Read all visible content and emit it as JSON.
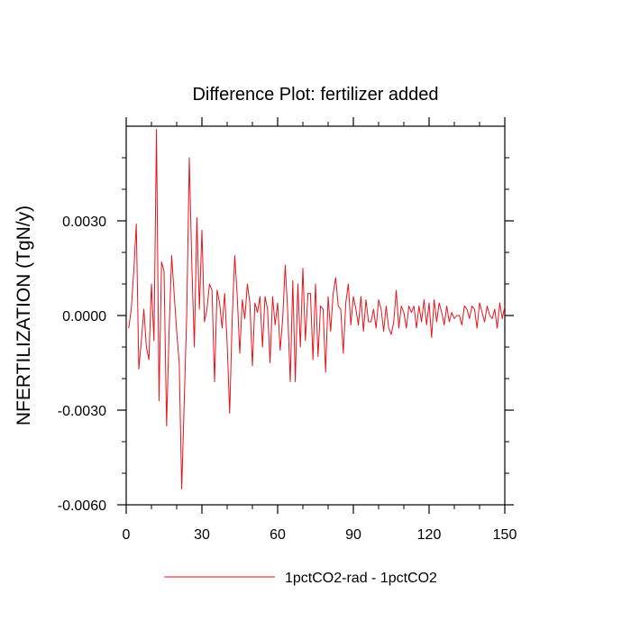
{
  "chart_data": {
    "type": "line",
    "title": "Difference Plot: fertilizer added",
    "xlabel": "",
    "ylabel": "NFERTILIZATION  (TgN/y)",
    "xlim": [
      0,
      150
    ],
    "ylim": [
      -0.006,
      0.006
    ],
    "xticks": [
      0,
      30,
      60,
      90,
      120,
      150
    ],
    "xtick_labels": [
      "0",
      "30",
      "60",
      "90",
      "120",
      "150"
    ],
    "yticks": [
      -0.006,
      -0.003,
      0.0,
      0.003
    ],
    "ytick_labels": [
      "-0.0060",
      "-0.0030",
      "0.0000",
      "0.0030"
    ],
    "grid": false,
    "legend_position": "bottom-center",
    "series": [
      {
        "name": "1pctCO2-rad - 1pctCO2",
        "color": "#e8141c",
        "x": [
          1,
          2,
          3,
          4,
          5,
          6,
          7,
          8,
          9,
          10,
          11,
          12,
          13,
          14,
          15,
          16,
          17,
          18,
          19,
          20,
          21,
          22,
          23,
          24,
          25,
          26,
          27,
          28,
          29,
          30,
          31,
          32,
          33,
          34,
          35,
          36,
          37,
          38,
          39,
          40,
          41,
          42,
          43,
          44,
          45,
          46,
          47,
          48,
          49,
          50,
          51,
          52,
          53,
          54,
          55,
          56,
          57,
          58,
          59,
          60,
          61,
          62,
          63,
          64,
          65,
          66,
          67,
          68,
          69,
          70,
          71,
          72,
          73,
          74,
          75,
          76,
          77,
          78,
          79,
          80,
          81,
          82,
          83,
          84,
          85,
          86,
          87,
          88,
          89,
          90,
          91,
          92,
          93,
          94,
          95,
          96,
          97,
          98,
          99,
          100,
          101,
          102,
          103,
          104,
          105,
          106,
          107,
          108,
          109,
          110,
          111,
          112,
          113,
          114,
          115,
          116,
          117,
          118,
          119,
          120,
          121,
          122,
          123,
          124,
          125,
          126,
          127,
          128,
          129,
          130,
          131,
          132,
          133,
          134,
          135,
          136,
          137,
          138,
          139,
          140,
          141,
          142,
          143,
          144,
          145,
          146,
          147,
          148,
          149,
          150
        ],
        "y": [
          -0.0004,
          0.0002,
          0.0014,
          0.0029,
          -0.0017,
          -0.0008,
          0.0002,
          -0.001,
          -0.0014,
          0.001,
          -0.0008,
          0.0059,
          -0.0027,
          0.0017,
          0.0014,
          -0.0035,
          -0.0005,
          0.0019,
          0.0007,
          -0.0005,
          -0.0015,
          -0.0055,
          -0.0027,
          0.0001,
          0.005,
          0.0016,
          -0.001,
          0.0031,
          0.0002,
          0.0027,
          -0.0002,
          0.0002,
          0.001,
          0.0008,
          -0.0021,
          0.0008,
          0.0004,
          -0.0004,
          0.0007,
          -0.0009,
          -0.0031,
          -0.0001,
          0.0019,
          0.0006,
          -0.0012,
          0.0005,
          -0.0001,
          0.001,
          0.0004,
          -0.0016,
          0.0004,
          0.0001,
          0.0006,
          -0.001,
          0.0006,
          0.0002,
          -0.0015,
          0.0006,
          -0.0003,
          0.0004,
          -0.0011,
          -0.0001,
          0.0016,
          0.0001,
          -0.0021,
          0.0011,
          -0.0021,
          0.001,
          -0.001,
          0.0015,
          -0.0008,
          0.0007,
          0.0007,
          -0.0014,
          0.001,
          -0.0013,
          0.0003,
          0.0002,
          -0.0018,
          0.0006,
          -0.0005,
          0.0007,
          0.0012,
          0.0003,
          0.0002,
          -0.0012,
          0.0004,
          0.001,
          -0.0003,
          0.0006,
          0.0002,
          -0.0003,
          0.0006,
          -0.0005,
          0.0005,
          -0.0002,
          -0.0002,
          0.0002,
          -0.0004,
          0.0005,
          0.0002,
          -0.0005,
          0.0003,
          -0.0004,
          -0.0006,
          -0.0002,
          0.0008,
          -0.0004,
          0.0003,
          0.0001,
          -0.0004,
          0.0003,
          0.0001,
          0.0003,
          -0.0004,
          0.0003,
          -0.0002,
          0.0005,
          -0.0003,
          0.0004,
          -0.0007,
          0.0005,
          -0.0002,
          0.0004,
          0.0001,
          -0.0003,
          0.0003,
          -0.0002,
          0.0001,
          -0.0001,
          0.0,
          0.0,
          -0.0003,
          0.0003,
          0.0002,
          -0.0001,
          0.0003,
          0.0002,
          -0.0004,
          0.0004,
          0.0001,
          -0.0002,
          0.0003,
          0.0,
          -0.0001,
          0.0002,
          -0.0004,
          0.0004,
          -0.0001,
          0.0003
        ]
      }
    ]
  }
}
